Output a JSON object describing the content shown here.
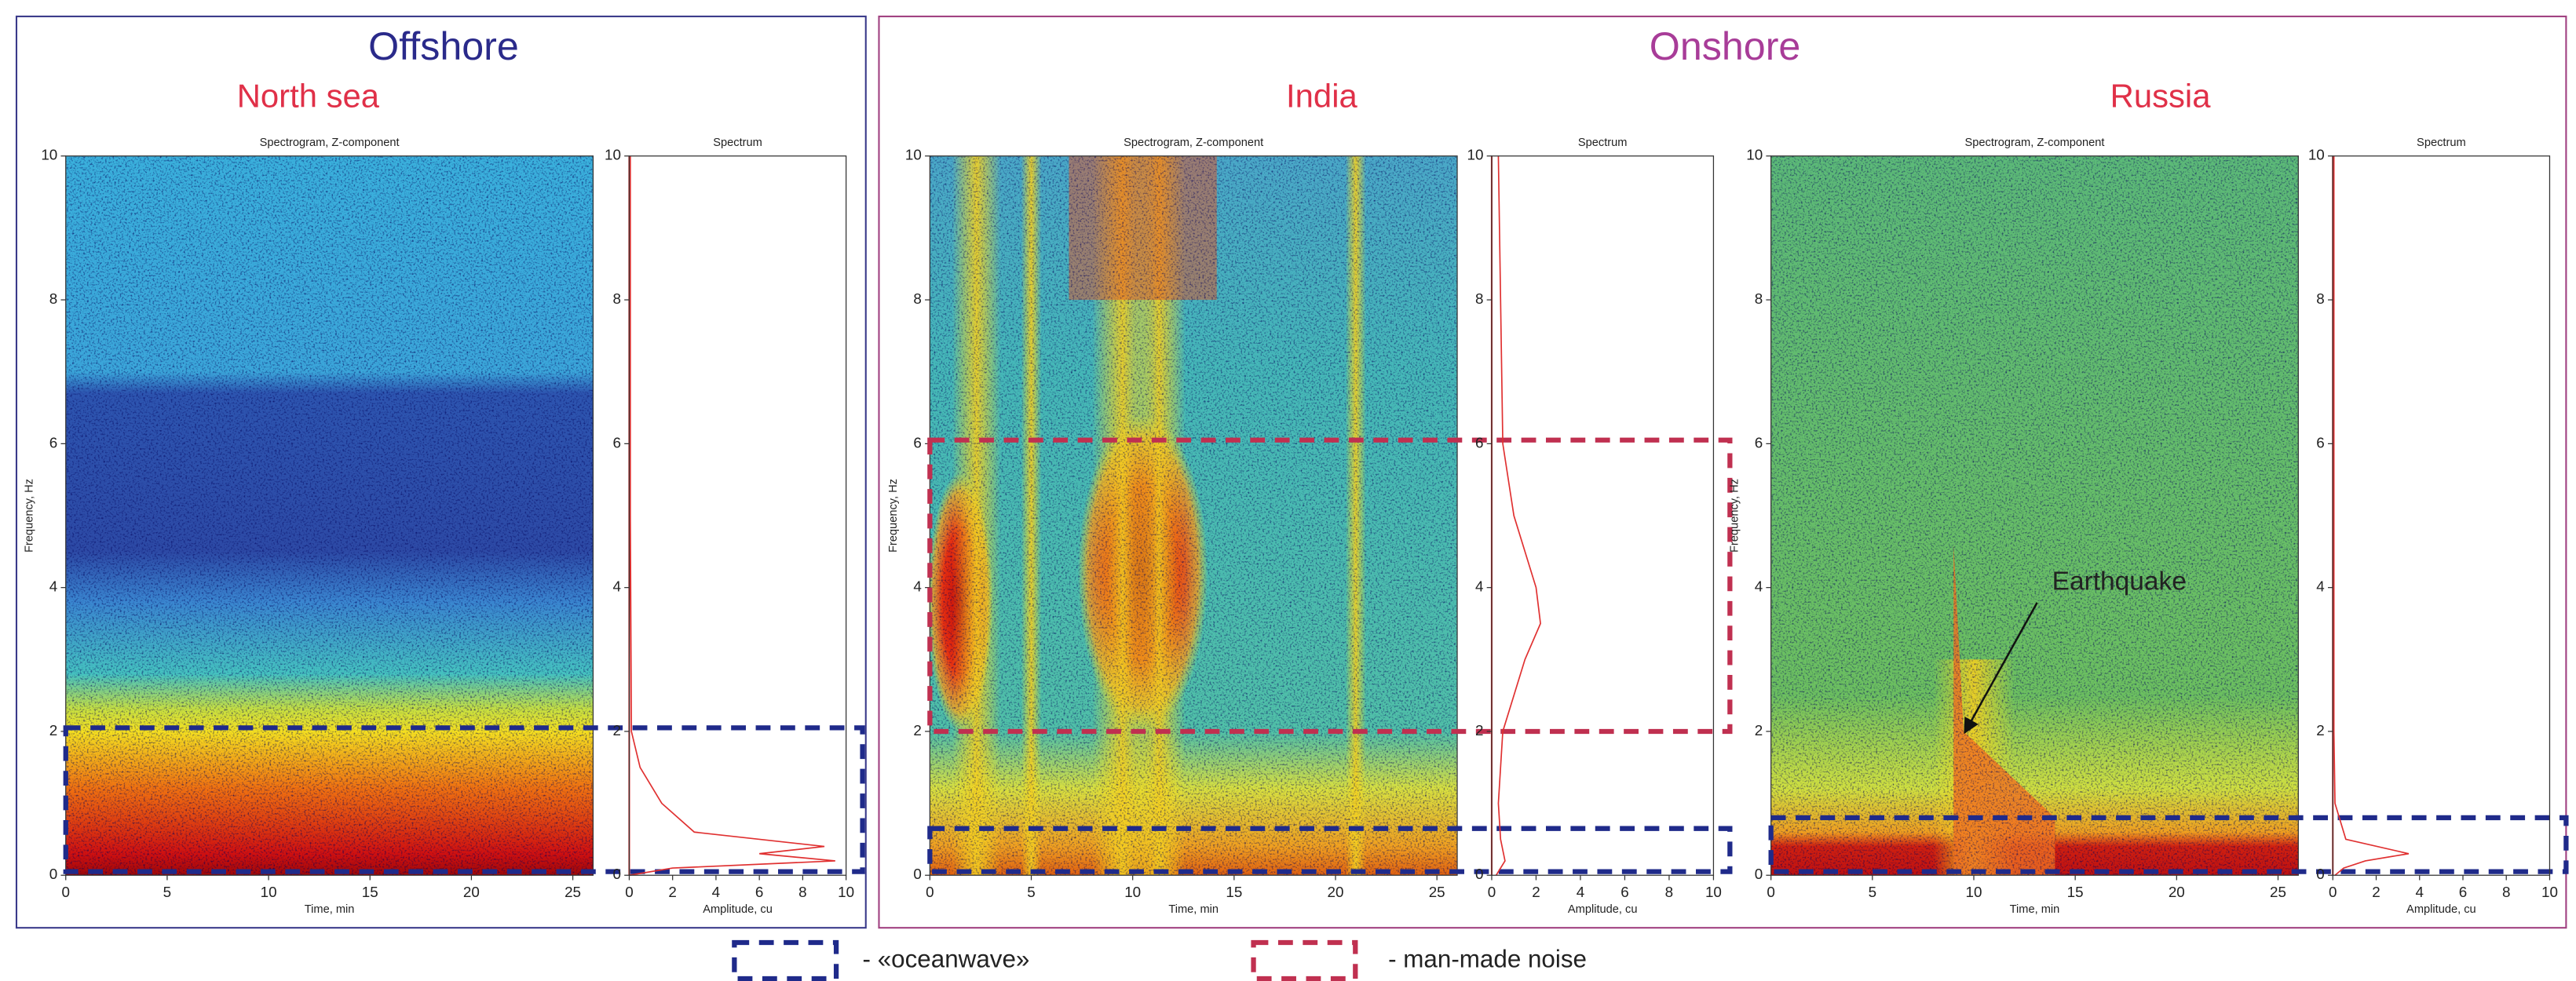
{
  "groups": {
    "offshore": "Offshore",
    "onshore": "Onshore"
  },
  "chart_data": [
    {
      "type": "spectrogram",
      "region": "North sea",
      "title": "Spectrogram, Z-component",
      "xlabel": "Time, min",
      "ylabel": "Frequency, Hz",
      "xlim": [
        0,
        26
      ],
      "xticks": [
        0,
        5,
        10,
        15,
        20,
        25
      ],
      "ylim": [
        0,
        10
      ],
      "yticks": [
        0,
        2,
        4,
        6,
        8,
        10
      ],
      "bands": [
        {
          "color": "#1f2a8a",
          "range": [
            0.05,
            2.05
          ]
        }
      ]
    },
    {
      "type": "line",
      "title": "Spectrum",
      "xlabel": "Amplitude, cu",
      "xlim": [
        0,
        10
      ],
      "xticks": [
        0,
        2,
        4,
        6,
        8,
        10
      ],
      "ylim": [
        0,
        10
      ],
      "yticks": [
        0,
        2,
        4,
        6,
        8,
        10
      ],
      "series": [
        {
          "color": "#e03030",
          "x": [
            0,
            2,
            9.5,
            6,
            9,
            3,
            1.5,
            0.5,
            0.1,
            0.05,
            0.05
          ],
          "y": [
            0,
            0.1,
            0.2,
            0.3,
            0.4,
            0.6,
            1,
            1.5,
            2,
            5,
            10
          ]
        }
      ]
    },
    {
      "type": "spectrogram",
      "region": "India",
      "title": "Spectrogram, Z-component",
      "xlabel": "Time, min",
      "ylabel": "Frequency, Hz",
      "xlim": [
        0,
        26
      ],
      "xticks": [
        0,
        5,
        10,
        15,
        20,
        25
      ],
      "ylim": [
        0,
        10
      ],
      "yticks": [
        0,
        2,
        4,
        6,
        8,
        10
      ],
      "bands": [
        {
          "color": "#c03050",
          "range": [
            2,
            6.05
          ]
        },
        {
          "color": "#1f2a8a",
          "range": [
            0.05,
            0.65
          ]
        }
      ]
    },
    {
      "type": "line",
      "title": "Spectrum",
      "xlabel": "Amplitude, cu",
      "xlim": [
        0,
        10
      ],
      "xticks": [
        0,
        2,
        4,
        6,
        8,
        10
      ],
      "ylim": [
        0,
        10
      ],
      "yticks": [
        0,
        2,
        4,
        6,
        8,
        10
      ],
      "series": [
        {
          "color": "#e03030",
          "x": [
            0.2,
            0.6,
            0.4,
            0.3,
            0.5,
            1.5,
            2.2,
            2,
            1,
            0.5,
            0.4,
            0.3
          ],
          "y": [
            0,
            0.2,
            0.5,
            1,
            2,
            3,
            3.5,
            4,
            5,
            6,
            8,
            10
          ]
        }
      ]
    },
    {
      "type": "spectrogram",
      "region": "Russia",
      "title": "Spectrogram, Z-component",
      "xlabel": "Time, min",
      "ylabel": "Frequency, Hz",
      "xlim": [
        0,
        26
      ],
      "xticks": [
        0,
        5,
        10,
        15,
        20,
        25
      ],
      "ylim": [
        0,
        10
      ],
      "yticks": [
        0,
        2,
        4,
        6,
        8,
        10
      ],
      "bands": [
        {
          "color": "#1f2a8a",
          "range": [
            0.05,
            0.8
          ]
        }
      ]
    },
    {
      "type": "line",
      "title": "Spectrum",
      "xlabel": "Amplitude, cu",
      "xlim": [
        0,
        10
      ],
      "xticks": [
        0,
        2,
        4,
        6,
        8,
        10
      ],
      "ylim": [
        0,
        10
      ],
      "yticks": [
        0,
        2,
        4,
        6,
        8,
        10
      ],
      "series": [
        {
          "color": "#e03030",
          "x": [
            0.1,
            0.5,
            1.5,
            3.5,
            0.6,
            0.1,
            0.05,
            0.05
          ],
          "y": [
            0,
            0.1,
            0.2,
            0.3,
            0.5,
            1,
            2,
            10
          ]
        }
      ]
    }
  ],
  "annotations": [
    {
      "text": "Earthquake"
    }
  ],
  "legend": [
    {
      "label": "- «oceanwave»",
      "color": "#1f2a8a"
    },
    {
      "label": "- man-made noise",
      "color": "#c03050"
    }
  ]
}
